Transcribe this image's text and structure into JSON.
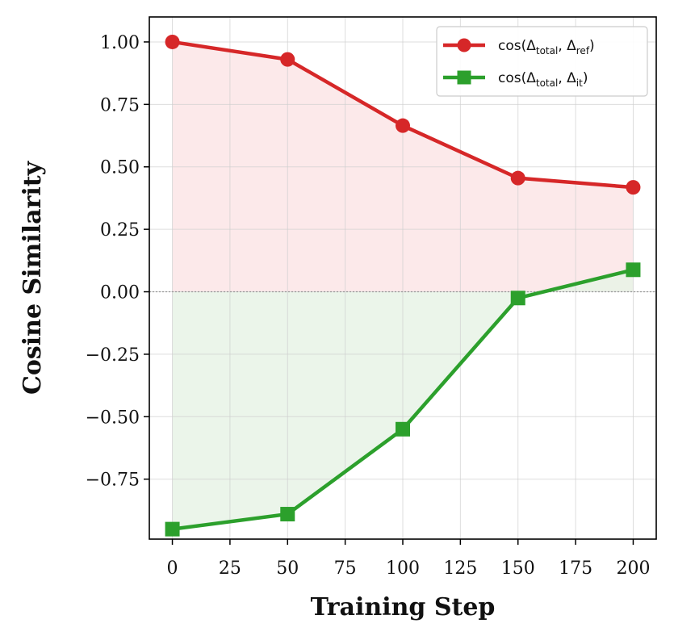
{
  "chart_data": {
    "type": "line",
    "xlabel": "Training Step",
    "ylabel": "Cosine Similarity",
    "xlim": [
      -10,
      210
    ],
    "ylim": [
      -0.99,
      1.1
    ],
    "xticks": [
      0,
      25,
      50,
      75,
      100,
      125,
      150,
      175,
      200
    ],
    "yticks": [
      1.0,
      0.75,
      0.5,
      0.25,
      0.0,
      -0.25,
      -0.5,
      -0.75
    ],
    "ytick_labels": [
      "1.00",
      "0.75",
      "0.50",
      "0.25",
      "0.00",
      "−0.25",
      "−0.50",
      "−0.75"
    ],
    "grid": true,
    "zero_line": true,
    "legend_position": "top-right",
    "x": [
      0,
      50,
      100,
      150,
      200
    ],
    "series": [
      {
        "name": "cos(Δtotal, Δref)",
        "legend": {
          "base": "cos(Δ",
          "sub1": "total",
          "mid": ", Δ",
          "sub2": "ref",
          "end": ")"
        },
        "values": [
          1.0,
          0.93,
          0.665,
          0.455,
          0.418
        ],
        "color": "#d62728",
        "fill_color": "#fbe5e6",
        "marker": "circle"
      },
      {
        "name": "cos(Δtotal, Δit)",
        "legend": {
          "base": "cos(Δ",
          "sub1": "total",
          "mid": ", Δ",
          "sub2": "it",
          "end": ")"
        },
        "values": [
          -0.95,
          -0.89,
          -0.55,
          -0.025,
          0.088
        ],
        "color": "#2ca02c",
        "fill_color": "#e8f3e6",
        "marker": "square"
      }
    ]
  }
}
